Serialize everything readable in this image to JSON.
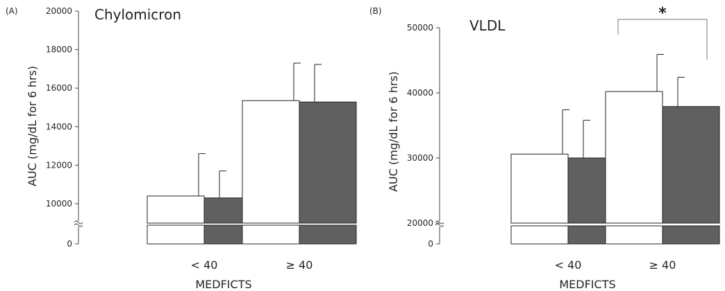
{
  "chart_data": [
    {
      "type": "bar",
      "panel_label": "(A)",
      "title": "Chylomicron",
      "xlabel": "MEDFICTS",
      "ylabel": "AUC (mg/dL for 6 hrs)",
      "categories": [
        "< 40",
        "≥ 40"
      ],
      "ylim": [
        8000,
        20000
      ],
      "axis_break": true,
      "yticks": [
        "0",
        "10000",
        "12000",
        "14000",
        "16000",
        "18000",
        "20000"
      ],
      "bar_colors": [
        "#ffffff",
        "#606060"
      ],
      "series": [
        {
          "values": [
            10400,
            15350
          ],
          "errors": [
            2200,
            1950
          ]
        },
        {
          "values": [
            10300,
            15280
          ],
          "errors": [
            1400,
            1950
          ]
        }
      ],
      "significance": []
    },
    {
      "type": "bar",
      "panel_label": "(B)",
      "title": "VLDL",
      "xlabel": "MEDFICTS",
      "ylabel": "AUC (mg/dL for 6 hrs)",
      "categories": [
        "< 40",
        "≥ 40"
      ],
      "ylim": [
        20000,
        50000
      ],
      "axis_break": true,
      "yticks": [
        "0",
        "20000",
        "30000",
        "40000",
        "50000"
      ],
      "bar_colors": [
        "#ffffff",
        "#606060"
      ],
      "series": [
        {
          "values": [
            30600,
            40200
          ],
          "errors": [
            6800,
            5700
          ]
        },
        {
          "values": [
            30000,
            37900
          ],
          "errors": [
            5800,
            4500
          ]
        }
      ],
      "significance": [
        {
          "category": "≥ 40",
          "label": "*"
        }
      ]
    }
  ]
}
